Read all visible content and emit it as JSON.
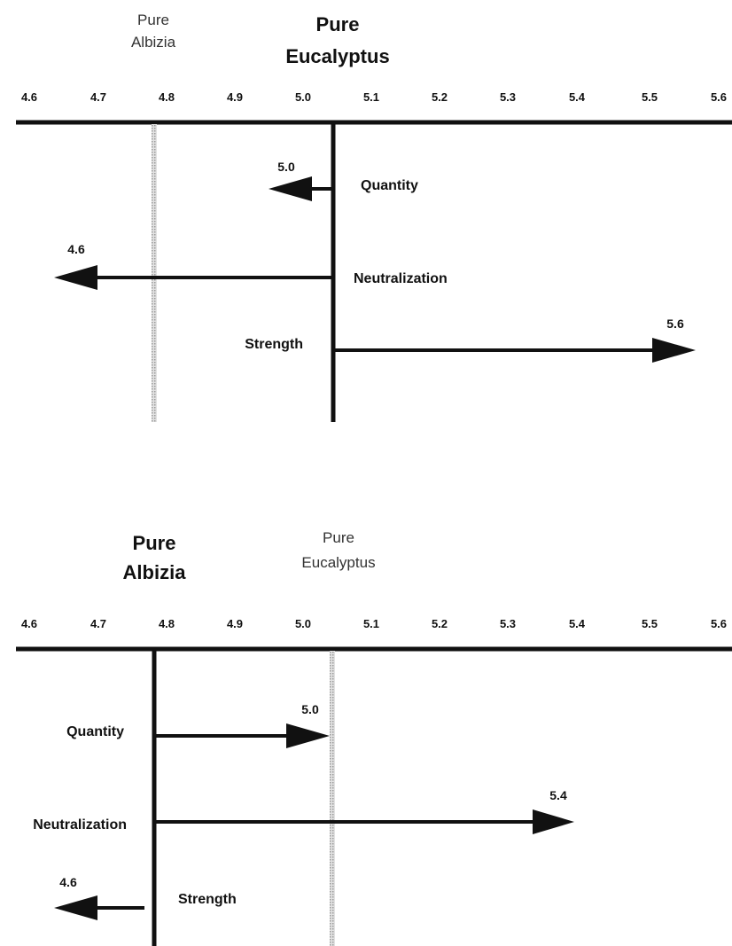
{
  "scale": {
    "ticks": [
      "4.6",
      "4.7",
      "4.8",
      "4.9",
      "5.0",
      "5.1",
      "5.2",
      "5.3",
      "5.4",
      "5.5",
      "5.6"
    ]
  },
  "panels": [
    {
      "id": "top",
      "primary_title_line1": "Pure",
      "primary_title_line2": "Eucalyptus",
      "primary_value": 5.04,
      "secondary_title_line1": "Pure",
      "secondary_title_line2": "Albizia",
      "secondary_value": 4.78,
      "arrows": [
        {
          "factor": "Quantity",
          "end_label": "5.0",
          "end_value": 4.95
        },
        {
          "factor": "Neutralization",
          "end_label": "4.6",
          "end_value": 4.63
        },
        {
          "factor": "Strength",
          "end_label": "5.6",
          "end_value": 5.57
        }
      ]
    },
    {
      "id": "bottom",
      "primary_title_line1": "Pure",
      "primary_title_line2": "Albizia",
      "primary_value": 4.78,
      "secondary_title_line1": "Pure",
      "secondary_title_line2": "Eucalyptus",
      "secondary_value": 5.04,
      "arrows": [
        {
          "factor": "Quantity",
          "end_label": "5.0",
          "end_value": 5.04
        },
        {
          "factor": "Neutralization",
          "end_label": "5.4",
          "end_value": 5.4
        },
        {
          "factor": "Strength",
          "end_label": "4.6",
          "end_value": 4.63
        }
      ]
    }
  ]
}
